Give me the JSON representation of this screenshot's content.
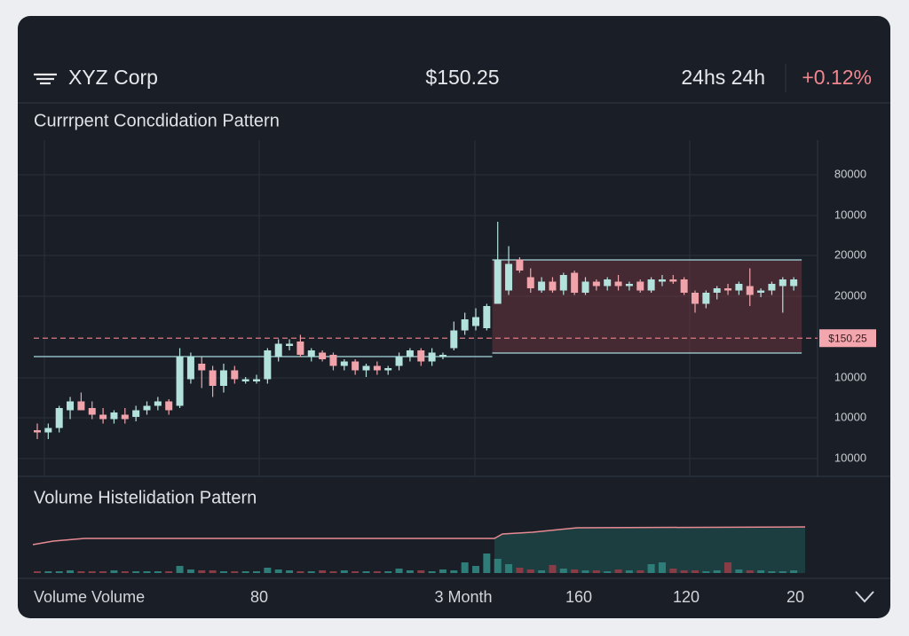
{
  "header": {
    "symbol": "XYZ Corp",
    "price": "$150.25",
    "period": "24hs 24h",
    "change": "+0.12%"
  },
  "chart_data": {
    "type": "candlestick",
    "title": "Currrpent Concdidation Pattern",
    "ylim": [
      119.5,
      194.5
    ],
    "y_axis_labels": [
      "80000",
      "10000",
      "20000",
      "20000",
      "10000",
      "10000",
      "10000"
    ],
    "up_color": "#b3e2dd",
    "down_color": "#f0a3aa",
    "candles": [
      [
        129.5,
        131,
        127.5,
        129
      ],
      [
        129,
        131,
        127.5,
        130
      ],
      [
        130,
        135,
        129,
        134.5
      ],
      [
        134,
        137,
        132,
        136
      ],
      [
        136,
        138,
        134,
        134
      ],
      [
        134.5,
        136,
        132,
        133
      ],
      [
        133,
        134.5,
        131,
        132
      ],
      [
        132,
        134,
        131,
        133.5
      ],
      [
        133,
        134.5,
        131,
        132
      ],
      [
        132.5,
        135,
        131.5,
        134
      ],
      [
        134,
        136,
        133,
        135
      ],
      [
        135,
        137,
        134,
        136
      ],
      [
        136,
        136.5,
        133,
        134
      ],
      [
        135,
        148,
        134.5,
        146
      ],
      [
        141,
        147,
        140,
        146
      ],
      [
        144.5,
        146,
        139,
        143
      ],
      [
        143,
        144,
        137,
        139.5
      ],
      [
        139.5,
        144.5,
        138,
        143
      ],
      [
        143,
        144,
        140,
        141
      ],
      [
        140.5,
        141.5,
        140,
        141
      ],
      [
        140.5,
        142,
        140,
        141
      ],
      [
        141,
        148,
        140,
        147.5
      ],
      [
        146,
        150,
        145,
        149
      ],
      [
        148.5,
        150,
        147.5,
        149
      ],
      [
        149.5,
        151,
        146,
        146.5
      ],
      [
        146,
        148,
        145,
        147.5
      ],
      [
        147,
        147.5,
        145,
        145.5
      ],
      [
        146.5,
        147,
        143,
        144
      ],
      [
        144,
        145.5,
        143,
        145
      ],
      [
        145,
        145.5,
        142,
        143
      ],
      [
        143,
        144.5,
        141.5,
        144
      ],
      [
        144,
        145,
        142,
        143
      ],
      [
        143,
        144,
        142,
        143.5
      ],
      [
        144,
        147,
        143,
        146
      ],
      [
        146,
        148,
        145,
        147.5
      ],
      [
        147.5,
        148,
        144,
        145
      ],
      [
        145,
        148,
        144,
        147
      ],
      [
        146,
        147,
        145.5,
        146.5
      ],
      [
        148,
        154,
        147.5,
        152
      ],
      [
        152,
        156,
        151,
        154.5
      ],
      [
        153,
        157,
        152,
        155
      ],
      [
        152.5,
        158,
        152,
        157.5
      ],
      [
        158,
        176.5,
        158,
        168
      ],
      [
        161,
        171,
        160,
        167
      ],
      [
        168,
        168.5,
        165,
        165.5
      ],
      [
        164,
        166,
        160.5,
        161.5
      ],
      [
        161,
        164,
        160.5,
        163
      ],
      [
        163,
        164,
        160.5,
        161
      ],
      [
        161,
        165,
        160,
        164.5
      ],
      [
        165,
        165.5,
        160,
        160.5
      ],
      [
        160.5,
        164,
        160,
        163
      ],
      [
        163,
        163.5,
        161,
        162
      ],
      [
        162,
        164,
        161,
        163.5
      ],
      [
        163,
        164.5,
        161,
        162
      ],
      [
        162,
        163,
        161,
        162.5
      ],
      [
        163,
        163.5,
        160.5,
        161
      ],
      [
        161,
        164,
        160.5,
        163.5
      ],
      [
        163,
        164.5,
        162,
        163.5
      ],
      [
        163.5,
        164.5,
        162.5,
        163
      ],
      [
        163.5,
        164,
        160,
        160.5
      ],
      [
        160.5,
        161,
        156,
        158
      ],
      [
        158,
        161,
        157,
        160.5
      ],
      [
        160.5,
        162,
        159,
        161.5
      ],
      [
        161.5,
        162.5,
        160,
        161
      ],
      [
        161,
        163,
        160,
        162.5
      ],
      [
        162,
        166,
        157.5,
        160
      ],
      [
        160.5,
        161.5,
        159.5,
        161
      ],
      [
        161,
        163,
        160,
        162.5
      ],
      [
        162,
        164,
        156,
        163.5
      ],
      [
        162,
        164,
        161,
        163.5
      ]
    ],
    "consolidation_range": [
      146.9,
      167.9
    ],
    "support_level": 146.1,
    "current_price": {
      "value": 150.25,
      "label": "$150.25"
    },
    "volume": {
      "title": "Volume Histelidation Pattern",
      "vlim": [
        0,
        50
      ],
      "values": [
        2,
        2,
        2,
        3,
        2,
        2,
        2,
        3,
        2,
        2,
        2,
        2,
        2,
        8,
        4,
        3,
        3,
        2,
        2,
        2,
        2,
        6,
        4,
        3,
        2,
        2,
        3,
        2,
        3,
        2,
        2,
        2,
        2,
        5,
        3,
        3,
        2,
        4,
        3,
        12,
        8,
        22,
        16,
        10,
        6,
        4,
        3,
        9,
        5,
        4,
        3,
        3,
        2,
        4,
        3,
        3,
        10,
        12,
        5,
        3,
        3,
        2,
        3,
        12,
        4,
        3,
        3,
        2,
        2,
        3
      ]
    },
    "x_axis_labels": [
      "Volume Volume",
      "80",
      "3 Month",
      "160",
      "120",
      "20"
    ]
  }
}
